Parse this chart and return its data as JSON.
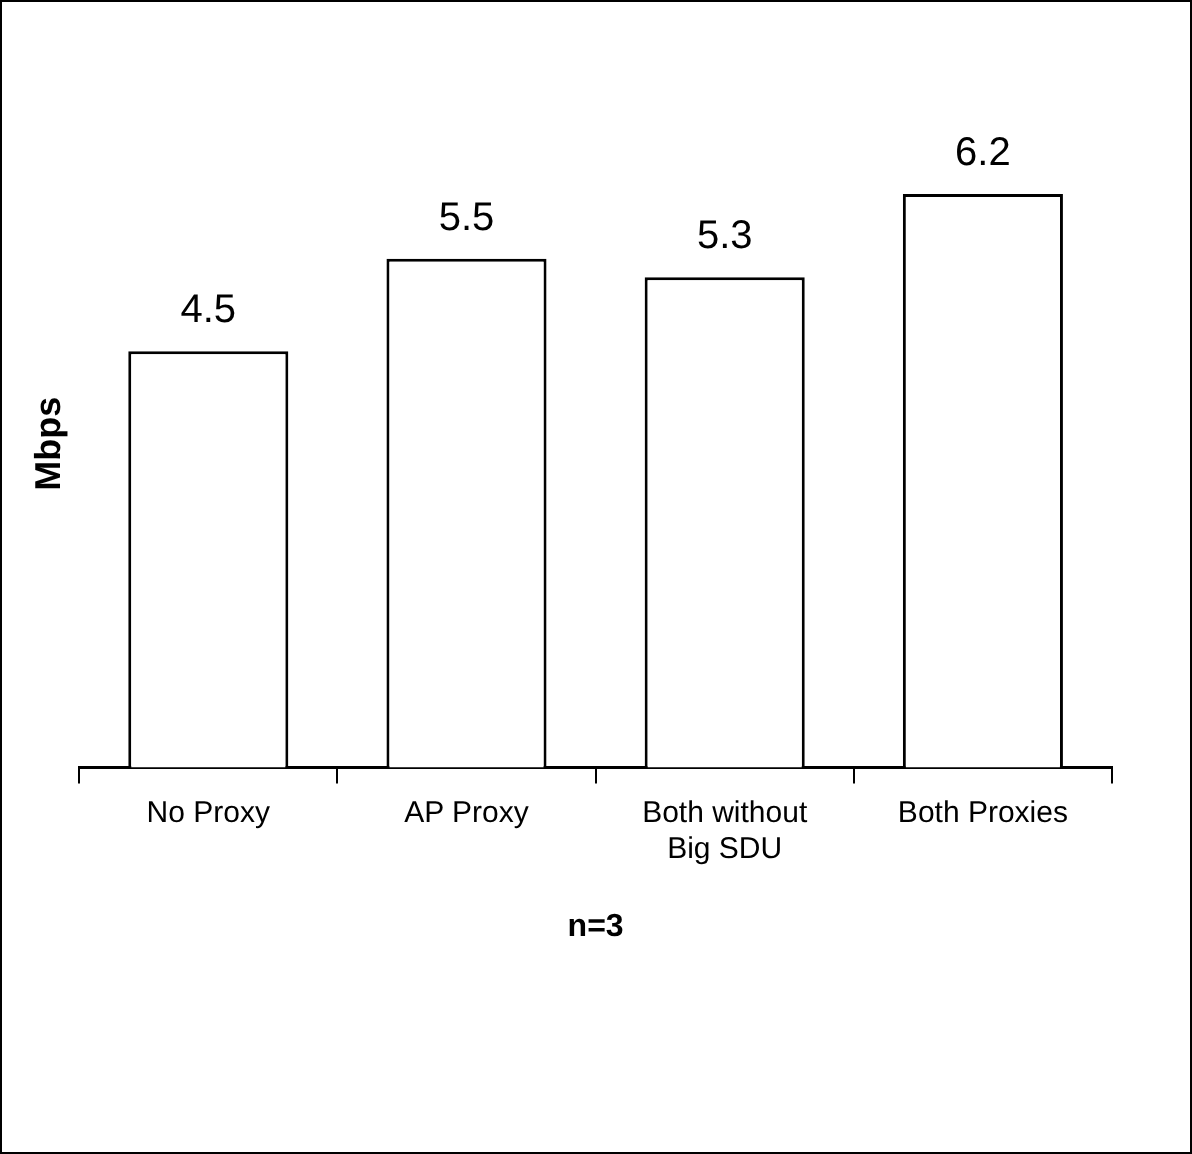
{
  "chart_data": {
    "type": "bar",
    "categories": [
      "No Proxy",
      "AP Proxy",
      "Both without Big SDU",
      "Both Proxies"
    ],
    "values": [
      4.5,
      5.5,
      5.3,
      6.2
    ],
    "color": "#ffffff",
    "ylabel": "Mbps",
    "xlabel": "n=3",
    "data_labels": true,
    "grid": false,
    "legend": false,
    "tick_labels": "x"
  }
}
